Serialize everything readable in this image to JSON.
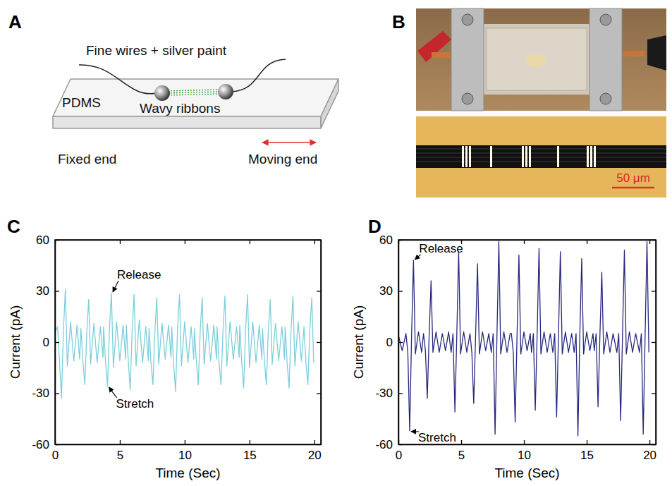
{
  "chart_data": [
    {
      "type": "line",
      "panel": "C",
      "x_label": "Time (Sec)",
      "y_label": "Current (pA)",
      "color": "#7ccfdc",
      "xlim": [
        0,
        20.5
      ],
      "xticks": [
        0,
        5,
        10,
        15,
        20
      ],
      "ylim": [
        -60,
        60
      ],
      "yticks": [
        -60,
        -30,
        0,
        30,
        60
      ],
      "x": [
        0.0,
        0.2,
        0.35,
        0.5,
        0.65,
        0.8,
        0.95,
        1.2,
        1.45,
        1.7,
        1.9,
        2.0,
        2.15,
        2.3,
        2.45,
        2.6,
        2.75,
        3.0,
        3.25,
        3.5,
        3.7,
        3.75,
        3.9,
        4.05,
        4.2,
        4.35,
        4.5,
        4.75,
        5.0,
        5.25,
        5.45,
        5.5,
        5.65,
        5.8,
        5.95,
        6.1,
        6.25,
        6.5,
        6.75,
        7.0,
        7.2,
        7.25,
        7.4,
        7.55,
        7.7,
        7.85,
        8.0,
        8.25,
        8.5,
        8.75,
        8.95,
        9.0,
        9.15,
        9.3,
        9.45,
        9.6,
        9.75,
        10.0,
        10.25,
        10.5,
        10.7,
        10.75,
        10.9,
        11.05,
        11.2,
        11.35,
        11.5,
        11.75,
        12.0,
        12.25,
        12.45,
        12.5,
        12.65,
        12.8,
        12.95,
        13.1,
        13.25,
        13.5,
        13.75,
        14.0,
        14.2,
        14.25,
        14.4,
        14.55,
        14.7,
        14.85,
        15.0,
        15.25,
        15.5,
        15.75,
        15.95,
        16.0,
        16.15,
        16.3,
        16.45,
        16.6,
        16.75,
        17.0,
        17.25,
        17.5,
        17.7,
        17.75,
        17.9,
        18.05,
        18.2,
        18.35,
        18.5,
        18.75,
        19.0,
        19.2,
        19.35,
        19.5,
        19.65,
        19.8,
        19.95
      ],
      "values": [
        6,
        9,
        -12,
        -33,
        7,
        31,
        -14,
        12,
        -11,
        10,
        -10,
        8,
        -11,
        -25,
        6,
        25,
        -13,
        11,
        -12,
        9,
        -9,
        9,
        -12,
        -26,
        8,
        29,
        -15,
        12,
        -11,
        10,
        -10,
        10,
        -11,
        -28,
        7,
        28,
        -14,
        13,
        -12,
        9,
        -11,
        8,
        -12,
        -25,
        6,
        26,
        -13,
        11,
        -10,
        10,
        -9,
        9,
        -13,
        -29,
        8,
        28,
        -14,
        12,
        -12,
        9,
        -10,
        8,
        -11,
        -25,
        7,
        26,
        -13,
        11,
        -11,
        10,
        -10,
        9,
        -12,
        -25,
        6,
        27,
        -14,
        12,
        -10,
        9,
        -9,
        10,
        -12,
        -27,
        8,
        28,
        -15,
        12,
        -12,
        10,
        -10,
        8,
        -11,
        -25,
        7,
        25,
        -13,
        11,
        -11,
        9,
        -10,
        9,
        -12,
        -27,
        7,
        27,
        -14,
        12,
        -11,
        9,
        -12,
        -25,
        7,
        26,
        -12
      ],
      "annotations": [
        {
          "text": "Release",
          "x": 4.35,
          "y": 29
        },
        {
          "text": "Stretch",
          "x": 4.05,
          "y": -26
        }
      ]
    },
    {
      "type": "line",
      "panel": "D",
      "x_label": "Time (Sec)",
      "y_label": "Current (pA)",
      "color": "#28287f",
      "xlim": [
        0,
        20.5
      ],
      "xticks": [
        0,
        5,
        10,
        15,
        20
      ],
      "ylim": [
        -60,
        60
      ],
      "yticks": [
        -60,
        -30,
        0,
        30,
        60
      ],
      "x": [
        0.0,
        0.3,
        0.6,
        0.75,
        0.9,
        1.05,
        1.2,
        1.35,
        1.6,
        1.85,
        2.0,
        2.15,
        2.3,
        2.45,
        2.6,
        2.75,
        3.0,
        3.25,
        3.5,
        3.75,
        4.0,
        4.2,
        4.35,
        4.5,
        4.65,
        4.8,
        4.95,
        5.2,
        5.45,
        5.7,
        5.85,
        6.0,
        6.15,
        6.3,
        6.45,
        6.7,
        6.95,
        7.2,
        7.4,
        7.55,
        7.7,
        7.85,
        8.0,
        8.15,
        8.4,
        8.65,
        8.9,
        9.0,
        9.15,
        9.3,
        9.45,
        9.6,
        9.75,
        10.0,
        10.25,
        10.5,
        10.6,
        10.75,
        10.9,
        11.05,
        11.2,
        11.35,
        11.6,
        11.85,
        12.1,
        12.3,
        12.45,
        12.6,
        12.75,
        12.9,
        13.05,
        13.3,
        13.55,
        13.8,
        14.0,
        14.15,
        14.3,
        14.45,
        14.6,
        14.75,
        15.0,
        15.25,
        15.5,
        15.6,
        15.75,
        15.9,
        16.05,
        16.2,
        16.35,
        16.6,
        16.85,
        17.1,
        17.4,
        17.55,
        17.7,
        17.85,
        18.0,
        18.15,
        18.4,
        18.65,
        18.9,
        19.2,
        19.35,
        19.5,
        19.65,
        19.8,
        19.95
      ],
      "values": [
        4,
        -5,
        5,
        -6,
        -52,
        4,
        48,
        -7,
        6,
        -6,
        5,
        -5,
        -33,
        4,
        36,
        -6,
        6,
        -6,
        5,
        -5,
        6,
        -6,
        5,
        -41,
        4,
        53,
        -7,
        6,
        -6,
        5,
        -6,
        -36,
        4,
        46,
        -7,
        6,
        -5,
        5,
        -6,
        5,
        -54,
        4,
        59,
        -7,
        6,
        -6,
        5,
        5,
        -6,
        -47,
        4,
        51,
        -7,
        6,
        -5,
        5,
        -6,
        5,
        -40,
        4,
        55,
        -7,
        6,
        -6,
        5,
        -6,
        5,
        -44,
        4,
        53,
        -7,
        6,
        -6,
        5,
        -6,
        5,
        -55,
        4,
        49,
        -7,
        6,
        -5,
        5,
        -5,
        5,
        -38,
        4,
        41,
        -7,
        6,
        -6,
        5,
        -6,
        5,
        -46,
        4,
        54,
        -7,
        6,
        -6,
        5,
        -6,
        5,
        -54,
        4,
        59,
        -6
      ],
      "annotations": [
        {
          "text": "Release",
          "x": 1.2,
          "y": 48
        },
        {
          "text": "Stretch",
          "x": 0.9,
          "y": -52
        }
      ]
    }
  ],
  "diagram": {
    "panel": "A",
    "wires_label": "Fine wires + silver paint",
    "substrate_label": "PDMS",
    "ribbons_label": "Wavy ribbons",
    "fixed_end_label": "Fixed end",
    "moving_end_label": "Moving end"
  },
  "photo": {
    "panel": "B",
    "scale_bar_label": "50 μm"
  }
}
